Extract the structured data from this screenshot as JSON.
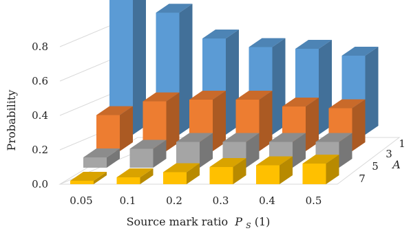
{
  "chart_data": {
    "type": "bar",
    "subtype": "3d-clustered",
    "title": "",
    "xlabel": "Source mark ratio",
    "xlabel_symbol": "P",
    "xlabel_subscript": "S",
    "xlabel_arg": "(1)",
    "ylabel": "Probability",
    "zlabel": "A",
    "categories": [
      "0.05",
      "0.1",
      "0.2",
      "0.3",
      "0.4",
      "0.5"
    ],
    "yticks": [
      "0.0",
      "0.2",
      "0.4",
      "0.6",
      "0.8"
    ],
    "ylim": [
      0,
      0.9
    ],
    "grid": true,
    "series": [
      {
        "name": "1",
        "color": "#5b9bd5",
        "values": [
          0.83,
          0.71,
          0.56,
          0.51,
          0.5,
          0.46
        ]
      },
      {
        "name": "3",
        "color": "#ed7d31",
        "values": [
          0.21,
          0.29,
          0.3,
          0.3,
          0.26,
          0.25
        ]
      },
      {
        "name": "5",
        "color": "#a5a5a5",
        "values": [
          0.06,
          0.11,
          0.15,
          0.15,
          0.15,
          0.15
        ]
      },
      {
        "name": "7",
        "color": "#ffc000",
        "values": [
          0.02,
          0.04,
          0.07,
          0.1,
          0.11,
          0.12
        ]
      }
    ]
  }
}
